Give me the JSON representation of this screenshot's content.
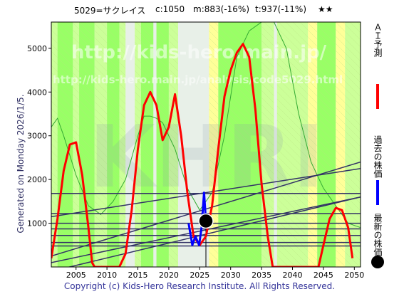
{
  "header": {
    "ticker": "5029=サクレイス",
    "current": "c:1050",
    "min_forecast": "m:883(-16%)",
    "target": "t:937(-11%)",
    "rating": "★★"
  },
  "side_label": "Generated on Monday 2026/1/5.",
  "watermark": {
    "url_large": "http://kids-hero.main.jp/",
    "url_small": "http://kids-hero.main.jp/analysis/code5029.html",
    "logo": "KHRI"
  },
  "legend": {
    "ai_forecast": "ＡＩ予測",
    "past_price": "過去の株価",
    "latest_price": "最新の株価"
  },
  "footer": "Copyright (c) Kids-Hero Research Institute. All Rights Reserved.",
  "colors": {
    "forecast": "#ff0000",
    "past": "#0000ff",
    "trend": "#333366",
    "band_green": "#99ff66",
    "band_lime": "#ccff99",
    "band_yellow": "#ffff99"
  },
  "chart_data": {
    "type": "line",
    "xlim": [
      2001,
      2051
    ],
    "ylim": [
      0,
      5600
    ],
    "x_ticks": [
      2005,
      2010,
      2015,
      2020,
      2025,
      2030,
      2035,
      2040,
      2045,
      2050
    ],
    "y_ticks": [
      1000,
      2000,
      3000,
      4000,
      5000
    ],
    "series": [
      {
        "name": "ＡＩ予測",
        "x": [
          2001,
          2002,
          2003,
          2004,
          2005,
          2006,
          2007,
          2007.6,
          2008,
          2012,
          2013,
          2014,
          2015,
          2016,
          2017,
          2018,
          2019,
          2020,
          2021,
          2022,
          2023,
          2024,
          2025,
          2026,
          2027,
          2028,
          2029,
          2030,
          2031,
          2032,
          2033,
          2034,
          2035,
          2036,
          2036.8,
          2044.2,
          2045,
          2046,
          2047,
          2048,
          2049,
          2049.7
        ],
        "y": [
          200,
          1100,
          2200,
          2800,
          2850,
          2100,
          900,
          100,
          0,
          0,
          300,
          1300,
          2700,
          3700,
          4000,
          3700,
          2900,
          3200,
          3950,
          3000,
          1700,
          700,
          500,
          700,
          1400,
          2700,
          3900,
          4500,
          4900,
          5100,
          4800,
          3600,
          1900,
          700,
          0,
          0,
          500,
          1100,
          1350,
          1300,
          900,
          200
        ]
      },
      {
        "name": "過去の株価",
        "x": [
          2023.2,
          2023.8,
          2024.3,
          2024.9,
          2025.3,
          2025.7,
          2026
        ],
        "y": [
          1000,
          500,
          700,
          500,
          900,
          1700,
          1050
        ]
      }
    ],
    "trend_lines": [
      {
        "x": [
          2001,
          2051
        ],
        "y": [
          250,
          2400
        ]
      },
      {
        "x": [
          2001,
          2051
        ],
        "y": [
          1150,
          2250
        ]
      },
      {
        "x": [
          2001,
          2051
        ],
        "y": [
          100,
          1600
        ]
      },
      {
        "x": [
          2001,
          2051
        ],
        "y": [
          -100,
          1600
        ]
      },
      {
        "x": [
          2001,
          2051
        ],
        "y": [
          1680,
          1680
        ]
      },
      {
        "x": [
          2001,
          2051
        ],
        "y": [
          1220,
          1220
        ]
      },
      {
        "x": [
          2001,
          2051
        ],
        "y": [
          1000,
          1000
        ]
      },
      {
        "x": [
          2001,
          2051
        ],
        "y": [
          870,
          870
        ]
      },
      {
        "x": [
          2001,
          2051
        ],
        "y": [
          720,
          720
        ]
      },
      {
        "x": [
          2001,
          2051
        ],
        "y": [
          560,
          560
        ]
      },
      {
        "x": [
          2001,
          2051
        ],
        "y": [
          480,
          480
        ]
      }
    ],
    "bands": [
      {
        "x0": 2001,
        "x1": 2002,
        "color": "band_lime"
      },
      {
        "x0": 2002,
        "x1": 2004.5,
        "color": "band_green"
      },
      {
        "x0": 2004.5,
        "x1": 2005.5,
        "color": "band_lime"
      },
      {
        "x0": 2005.5,
        "x1": 2008,
        "color": "band_green"
      },
      {
        "x0": 2008,
        "x1": 2010,
        "color": "band_lime"
      },
      {
        "x0": 2010,
        "x1": 2012,
        "color": "band_green"
      },
      {
        "x0": 2012,
        "x1": 2013,
        "color": "band_lime"
      },
      {
        "x0": 2014.5,
        "x1": 2015.5,
        "color": "band_lime"
      },
      {
        "x0": 2015.5,
        "x1": 2017.5,
        "color": "band_green"
      },
      {
        "x0": 2018,
        "x1": 2020,
        "color": "band_green"
      },
      {
        "x0": 2020,
        "x1": 2021.5,
        "color": "band_lime"
      },
      {
        "x0": 2026.5,
        "x1": 2028,
        "color": "band_yellow"
      },
      {
        "x0": 2028,
        "x1": 2035,
        "color": "band_green"
      },
      {
        "x0": 2035,
        "x1": 2037,
        "color": "band_lime"
      },
      {
        "x0": 2037.5,
        "x1": 2042.5,
        "color": "band_lime"
      },
      {
        "x0": 2042.5,
        "x1": 2044,
        "color": "band_yellow"
      },
      {
        "x0": 2044,
        "x1": 2047,
        "color": "band_green"
      },
      {
        "x0": 2047,
        "x1": 2048.5,
        "color": "band_yellow"
      },
      {
        "x0": 2048.5,
        "x1": 2051,
        "color": "band_lime"
      }
    ],
    "thin_line": {
      "x": [
        2001,
        2002,
        2003,
        2005,
        2007,
        2009,
        2011,
        2013,
        2015,
        2016,
        2017,
        2018,
        2019,
        2021,
        2023,
        2025,
        2027,
        2029,
        2031,
        2033,
        2035,
        2037,
        2039,
        2041,
        2043,
        2045,
        2047,
        2049,
        2051
      ],
      "y": [
        3200,
        3400,
        3000,
        2100,
        1400,
        1200,
        1500,
        2000,
        3000,
        3450,
        3450,
        3400,
        3300,
        2700,
        1800,
        1300,
        1700,
        3000,
        4800,
        5400,
        5600,
        5600,
        5000,
        3500,
        2400,
        1800,
        1400,
        1000,
        900
      ]
    },
    "latest": {
      "x": 2026,
      "y": 1050
    }
  }
}
